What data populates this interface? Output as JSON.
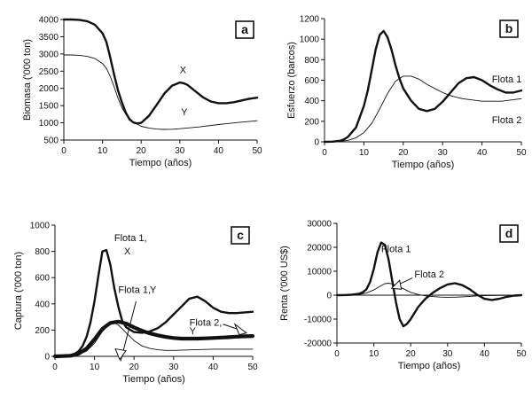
{
  "chart_data": [
    {
      "id": "a",
      "type": "line",
      "panel_label": "a",
      "xlabel": "Tiempo (años)",
      "ylabel": "Biomasa ('000 ton)",
      "xlim": [
        0,
        50
      ],
      "ylim": [
        500,
        4000
      ],
      "xticks": [
        0,
        10,
        20,
        30,
        40,
        50
      ],
      "yticks": [
        500,
        1000,
        1500,
        2000,
        2500,
        3000,
        3500,
        4000
      ],
      "series": [
        {
          "name": "X",
          "weight": "thick",
          "x": [
            0,
            2,
            4,
            6,
            8,
            10,
            11,
            12,
            13,
            14,
            15,
            16,
            17,
            18,
            19,
            20,
            22,
            24,
            26,
            28,
            30,
            31,
            32,
            34,
            36,
            38,
            40,
            42,
            44,
            46,
            48,
            50
          ],
          "y": [
            4000,
            4000,
            3990,
            3950,
            3850,
            3600,
            3350,
            2900,
            2400,
            1950,
            1600,
            1300,
            1100,
            1010,
            980,
            1000,
            1200,
            1520,
            1850,
            2080,
            2170,
            2150,
            2100,
            1920,
            1740,
            1620,
            1570,
            1570,
            1600,
            1650,
            1700,
            1730
          ]
        },
        {
          "name": "Y",
          "weight": "thin",
          "x": [
            0,
            2,
            4,
            6,
            8,
            10,
            11,
            12,
            13,
            14,
            15,
            16,
            18,
            20,
            22,
            24,
            26,
            28,
            30,
            35,
            40,
            45,
            50
          ],
          "y": [
            2970,
            2970,
            2960,
            2930,
            2870,
            2720,
            2580,
            2350,
            2050,
            1720,
            1450,
            1250,
            1020,
            900,
            850,
            820,
            810,
            815,
            830,
            880,
            950,
            1010,
            1060
          ]
        }
      ],
      "annotations": [
        {
          "text": "X",
          "x": 30,
          "y": 2550
        },
        {
          "text": "Y",
          "x": 30.3,
          "y": 1320
        }
      ]
    },
    {
      "id": "b",
      "type": "line",
      "panel_label": "b",
      "xlabel": "Tiempo (años)",
      "ylabel": "Esfuerzo (barcos)",
      "xlim": [
        0,
        50
      ],
      "ylim": [
        0,
        1200
      ],
      "xticks": [
        0,
        10,
        20,
        30,
        40,
        50
      ],
      "yticks": [
        0,
        200,
        400,
        600,
        800,
        1000,
        1200
      ],
      "series": [
        {
          "name": "Flota 1",
          "weight": "thick",
          "x": [
            0,
            2,
            4,
            5,
            6,
            8,
            10,
            11,
            12,
            13,
            14,
            15,
            16,
            17,
            18,
            19,
            20,
            22,
            24,
            26,
            28,
            30,
            32,
            34,
            36,
            38,
            40,
            42,
            44,
            46,
            48,
            50
          ],
          "y": [
            0,
            2,
            10,
            25,
            50,
            140,
            350,
            500,
            700,
            900,
            1040,
            1080,
            1020,
            900,
            750,
            620,
            520,
            400,
            320,
            300,
            320,
            390,
            480,
            570,
            620,
            630,
            600,
            550,
            510,
            480,
            480,
            500
          ]
        },
        {
          "name": "Flota 2",
          "weight": "thin",
          "x": [
            0,
            4,
            6,
            8,
            10,
            12,
            14,
            16,
            18,
            20,
            22,
            24,
            26,
            28,
            30,
            32,
            35,
            40,
            45,
            50
          ],
          "y": [
            0,
            5,
            15,
            40,
            90,
            180,
            320,
            470,
            590,
            640,
            640,
            610,
            560,
            520,
            480,
            450,
            420,
            395,
            395,
            420
          ]
        }
      ],
      "annotations": [
        {
          "text": "Flota 1",
          "x": 42.5,
          "y": 615
        },
        {
          "text": "Flota 2",
          "x": 42.5,
          "y": 215
        }
      ]
    },
    {
      "id": "c",
      "type": "line",
      "panel_label": "c",
      "xlabel": "Tiempo (años)",
      "ylabel": "Captura ('000 ton)",
      "xlim": [
        0,
        50
      ],
      "ylim": [
        0,
        1000
      ],
      "xticks": [
        0,
        10,
        20,
        30,
        40,
        50
      ],
      "yticks": [
        0,
        200,
        400,
        600,
        800,
        1000
      ],
      "series": [
        {
          "name": "Flota 1, X",
          "weight": "thick",
          "x": [
            0,
            2,
            4,
            5,
            6,
            7,
            8,
            9,
            10,
            11,
            12,
            13,
            14,
            15,
            16,
            17,
            18,
            20,
            22,
            24,
            26,
            28,
            30,
            32,
            34,
            36,
            38,
            40,
            42,
            44,
            46,
            48,
            50
          ],
          "y": [
            0,
            2,
            10,
            20,
            40,
            80,
            150,
            260,
            420,
            620,
            800,
            810,
            700,
            520,
            380,
            270,
            220,
            185,
            180,
            190,
            215,
            260,
            320,
            380,
            440,
            455,
            420,
            370,
            340,
            330,
            330,
            335,
            340
          ]
        },
        {
          "name": "Flota 1, Y",
          "weight": "thin",
          "x": [
            0,
            4,
            6,
            8,
            10,
            12,
            14,
            15,
            16,
            18,
            20,
            22,
            24,
            26,
            28,
            30,
            35,
            40,
            45,
            50
          ],
          "y": [
            0,
            5,
            15,
            40,
            100,
            190,
            250,
            255,
            240,
            180,
            120,
            80,
            60,
            50,
            45,
            45,
            50,
            55,
            55,
            55
          ]
        },
        {
          "name": "Flota 2, Y",
          "weight": "extra-thick",
          "x": [
            0,
            2,
            4,
            6,
            8,
            10,
            12,
            14,
            16,
            18,
            20,
            22,
            24,
            26,
            28,
            30,
            32,
            34,
            36,
            38,
            40,
            42,
            44,
            46,
            48,
            50
          ],
          "y": [
            0,
            2,
            5,
            20,
            60,
            130,
            210,
            255,
            265,
            250,
            220,
            195,
            175,
            160,
            148,
            140,
            135,
            135,
            135,
            137,
            140,
            143,
            146,
            150,
            153,
            155
          ]
        }
      ],
      "annotations": [
        {
          "text": "Flota 1,",
          "x": 15,
          "y": 905
        },
        {
          "text": "X",
          "x": 17.5,
          "y": 805
        },
        {
          "text": "Flota 1,",
          "x": 16,
          "y": 510
        },
        {
          "text": "Y",
          "x": 24,
          "y": 510
        },
        {
          "text": "Flota 2,",
          "x": 34,
          "y": 260
        },
        {
          "text": "Y",
          "x": 34,
          "y": 195
        }
      ]
    },
    {
      "id": "d",
      "type": "line",
      "panel_label": "d",
      "xlabel": "Tiempo (años)",
      "ylabel": "Renta ('000 US$)",
      "xlim": [
        0,
        50
      ],
      "ylim": [
        -20000,
        30000
      ],
      "xticks": [
        0,
        10,
        20,
        30,
        40,
        50
      ],
      "yticks": [
        -20000,
        -10000,
        0,
        10000,
        20000,
        30000
      ],
      "series": [
        {
          "name": "Flota 1",
          "weight": "thick",
          "x": [
            0,
            2,
            4,
            6,
            7,
            8,
            9,
            10,
            11,
            12,
            13,
            14,
            15,
            16,
            17,
            18,
            19,
            20,
            22,
            24,
            26,
            28,
            30,
            32,
            34,
            36,
            38,
            40,
            42,
            44,
            46,
            48,
            50
          ],
          "y": [
            0,
            50,
            200,
            600,
            1200,
            2500,
            5500,
            11000,
            18000,
            22000,
            21000,
            15000,
            6000,
            -3000,
            -10000,
            -13000,
            -12000,
            -10000,
            -5000,
            -1500,
            1000,
            3000,
            4500,
            5000,
            4200,
            2500,
            200,
            -1500,
            -2000,
            -1500,
            -700,
            -200,
            0
          ]
        },
        {
          "name": "Flota 2",
          "weight": "thin",
          "x": [
            0,
            4,
            6,
            8,
            10,
            12,
            13,
            14,
            15,
            16,
            18,
            20,
            22,
            24,
            26,
            28,
            30,
            32,
            34,
            36,
            38,
            40,
            45,
            50
          ],
          "y": [
            0,
            100,
            300,
            900,
            2200,
            4000,
            4800,
            5000,
            4700,
            4000,
            2700,
            1200,
            300,
            -300,
            -600,
            -800,
            -900,
            -850,
            -700,
            -500,
            -300,
            -200,
            -100,
            0
          ]
        },
        {
          "name": "zero-line",
          "weight": "thin",
          "x": [
            0,
            50
          ],
          "y": [
            0,
            0
          ]
        }
      ],
      "annotations": [
        {
          "text": "Flota 1",
          "x": 12,
          "y": 19500
        },
        {
          "text": "Flota 2",
          "x": 21,
          "y": 8800
        }
      ]
    }
  ]
}
